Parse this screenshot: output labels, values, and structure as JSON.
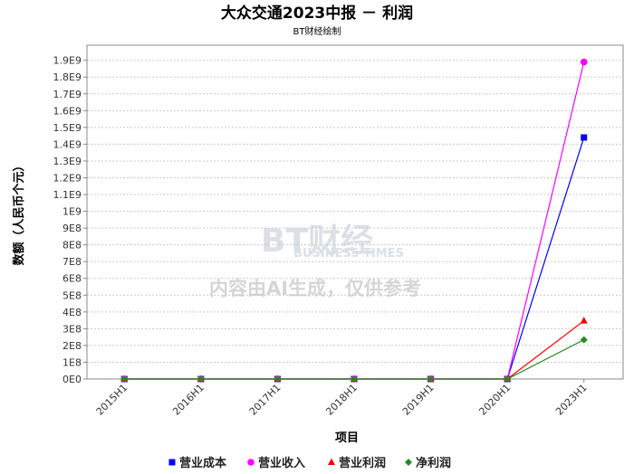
{
  "chart_data": {
    "type": "line",
    "title": "大众交通2023中报 － 利润",
    "subtitle": "BT财经绘制",
    "xlabel": "项目",
    "ylabel": "数额（人民币个元）",
    "categories": [
      "2015H1",
      "2016H1",
      "2017H1",
      "2018H1",
      "2019H1",
      "2020H1",
      "2023H1"
    ],
    "ylim": [
      0,
      1990000000
    ],
    "yticks": [
      "0E0",
      "1E8",
      "2E8",
      "3E8",
      "4E8",
      "5E8",
      "6E8",
      "7E8",
      "8E8",
      "9E8",
      "1E9",
      "1.1E9",
      "1.2E9",
      "1.3E9",
      "1.4E9",
      "1.5E9",
      "1.6E9",
      "1.7E9",
      "1.8E9",
      "1.9E9"
    ],
    "grid": true,
    "legend_position": "bottom",
    "series": [
      {
        "name": "营业成本",
        "color": "#0000ff",
        "marker": "square",
        "values": [
          0,
          0,
          0,
          0,
          0,
          0,
          1440000000
        ]
      },
      {
        "name": "营业收入",
        "color": "#ff00ff",
        "marker": "circle",
        "values": [
          0,
          0,
          0,
          0,
          0,
          0,
          1890000000
        ]
      },
      {
        "name": "营业利润",
        "color": "#ff0000",
        "marker": "triangle",
        "values": [
          0,
          0,
          0,
          0,
          0,
          0,
          347000000
        ]
      },
      {
        "name": "净利润",
        "color": "#228b22",
        "marker": "diamond",
        "values": [
          0,
          0,
          0,
          0,
          0,
          0,
          234000000
        ]
      }
    ]
  },
  "watermark": {
    "logo": "BT财经",
    "logo_sub": "BUSINESS TIMES",
    "notice": "内容由AI生成，仅供参考"
  }
}
